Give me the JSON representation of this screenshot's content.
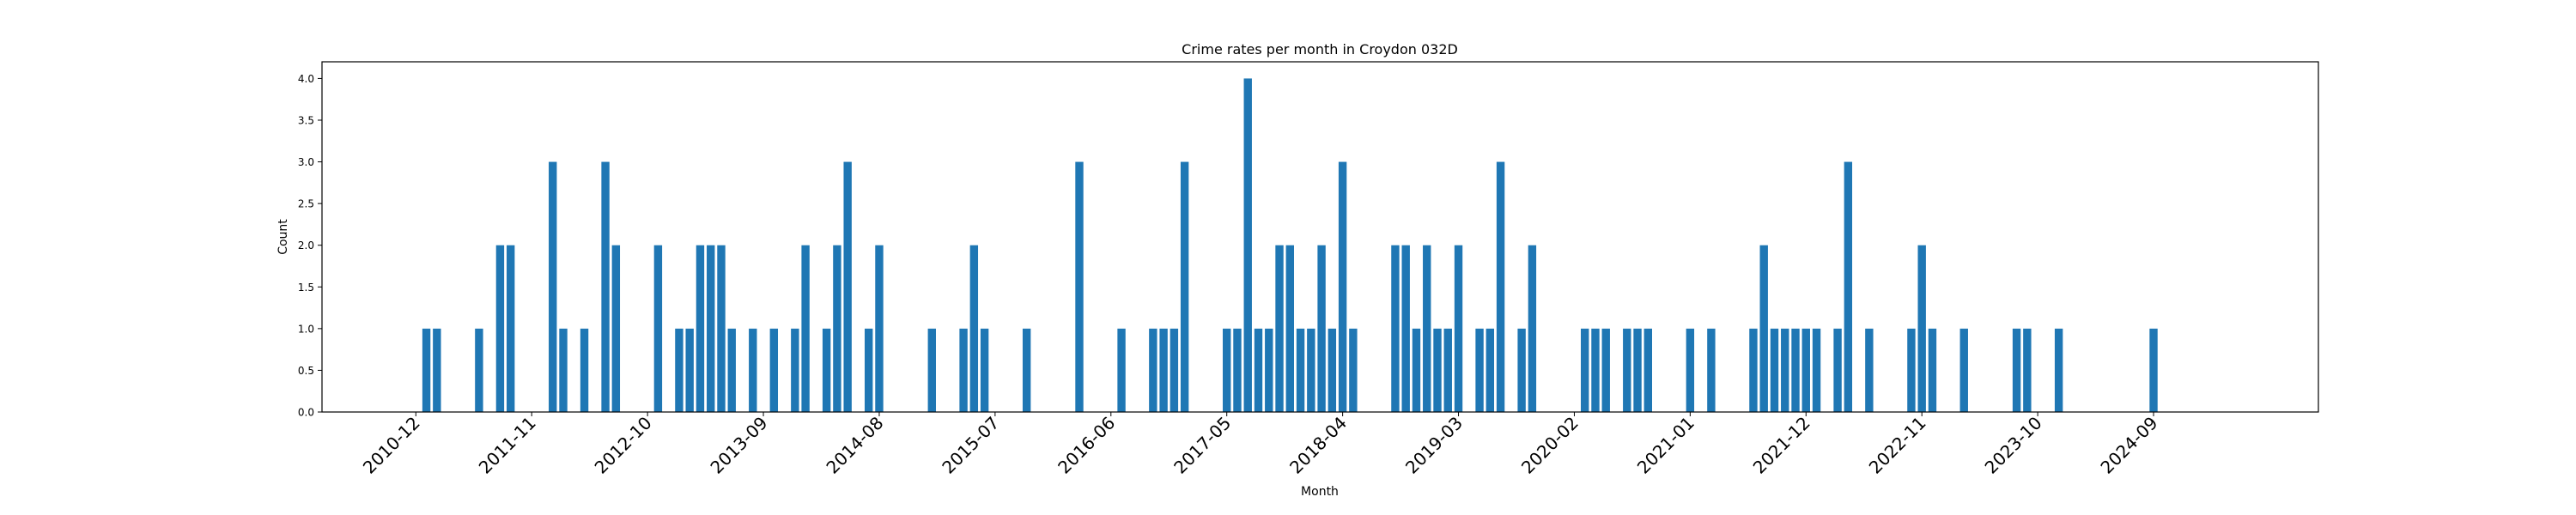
{
  "chart_data": {
    "type": "bar",
    "title": "Crime rates per month in Croydon 032D",
    "xlabel": "Month",
    "ylabel": "Count",
    "ylim": [
      0,
      4.2
    ],
    "yticks": [
      0,
      0.5,
      1,
      1.5,
      2,
      2.5,
      3,
      3.5,
      4
    ],
    "ytick_labels": [
      "0.0",
      "0.5",
      "1.0",
      "1.5",
      "2.0",
      "2.5",
      "3.0",
      "3.5",
      "4.0"
    ],
    "xtick_labels": [
      "2010-12",
      "2011-11",
      "2012-10",
      "2013-09",
      "2014-08",
      "2015-07",
      "2016-06",
      "2017-05",
      "2018-04",
      "2019-03",
      "2020-02",
      "2021-01",
      "2021-12",
      "2022-11",
      "2023-10",
      "2024-09"
    ],
    "grid": false,
    "color": "#1f77b4",
    "categories": [
      "2011-01",
      "2011-02",
      "2011-06",
      "2011-08",
      "2011-09",
      "2012-01",
      "2012-02",
      "2012-04",
      "2012-06",
      "2012-07",
      "2012-11",
      "2013-01",
      "2013-02",
      "2013-03",
      "2013-04",
      "2013-05",
      "2013-06",
      "2013-08",
      "2013-10",
      "2013-12",
      "2014-01",
      "2014-03",
      "2014-04",
      "2014-05",
      "2014-07",
      "2014-08",
      "2015-01",
      "2015-04",
      "2015-05",
      "2015-06",
      "2015-10",
      "2016-03",
      "2016-07",
      "2016-10",
      "2016-11",
      "2016-12",
      "2017-01",
      "2017-05",
      "2017-06",
      "2017-07",
      "2017-08",
      "2017-09",
      "2017-10",
      "2017-11",
      "2017-12",
      "2018-01",
      "2018-02",
      "2018-03",
      "2018-04",
      "2018-05",
      "2018-09",
      "2018-10",
      "2018-11",
      "2018-12",
      "2019-01",
      "2019-02",
      "2019-03",
      "2019-05",
      "2019-06",
      "2019-07",
      "2019-09",
      "2019-10",
      "2020-03",
      "2020-04",
      "2020-05",
      "2020-07",
      "2020-08",
      "2020-09",
      "2021-01",
      "2021-03",
      "2021-07",
      "2021-08",
      "2021-09",
      "2021-10",
      "2021-11",
      "2021-12",
      "2022-01",
      "2022-03",
      "2022-04",
      "2022-06",
      "2022-10",
      "2022-11",
      "2022-12",
      "2023-03",
      "2023-08",
      "2023-09",
      "2023-12",
      "2024-09"
    ],
    "values": [
      1,
      1,
      1,
      2,
      2,
      3,
      1,
      1,
      3,
      2,
      2,
      1,
      1,
      2,
      2,
      2,
      1,
      1,
      1,
      1,
      2,
      1,
      2,
      3,
      1,
      2,
      1,
      1,
      2,
      1,
      1,
      3,
      1,
      1,
      1,
      1,
      3,
      1,
      1,
      4,
      1,
      1,
      2,
      2,
      1,
      1,
      2,
      1,
      3,
      1,
      2,
      2,
      1,
      2,
      1,
      1,
      2,
      1,
      1,
      3,
      1,
      2,
      1,
      1,
      1,
      1,
      1,
      1,
      1,
      1,
      1,
      2,
      1,
      1,
      1,
      1,
      1,
      1,
      3,
      1,
      1,
      2,
      1,
      1,
      1,
      1,
      1,
      1
    ]
  }
}
